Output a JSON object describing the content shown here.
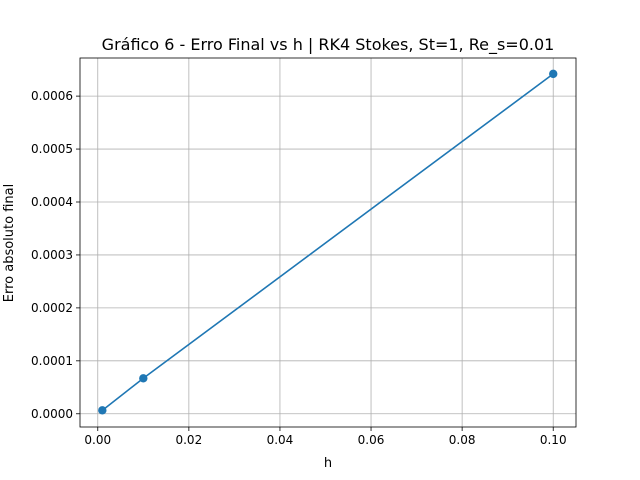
{
  "chart_data": {
    "type": "line",
    "title": "Gráfico 6 - Erro Final vs h | RK4 Stokes, St=1, Re_s=0.01",
    "xlabel": "h",
    "ylabel": "Erro absoluto final",
    "xlim": [
      -0.0039,
      0.105
    ],
    "ylim": [
      -2.5e-05,
      0.000672
    ],
    "x_ticks": [
      0.0,
      0.02,
      0.04,
      0.06,
      0.08,
      0.1
    ],
    "x_tick_labels": [
      "0.00",
      "0.02",
      "0.04",
      "0.06",
      "0.08",
      "0.10"
    ],
    "y_ticks": [
      0.0,
      0.0001,
      0.0002,
      0.0003,
      0.0004,
      0.0005,
      0.0006
    ],
    "y_tick_labels": [
      "0.0000",
      "0.0001",
      "0.0002",
      "0.0003",
      "0.0004",
      "0.0005",
      "0.0006"
    ],
    "grid": true,
    "series": [
      {
        "color": "#1f77b4",
        "marker": "circle",
        "x": [
          0.001,
          0.01,
          0.1
        ],
        "y": [
          6.5e-06,
          6.7e-05,
          0.000642
        ]
      }
    ]
  }
}
